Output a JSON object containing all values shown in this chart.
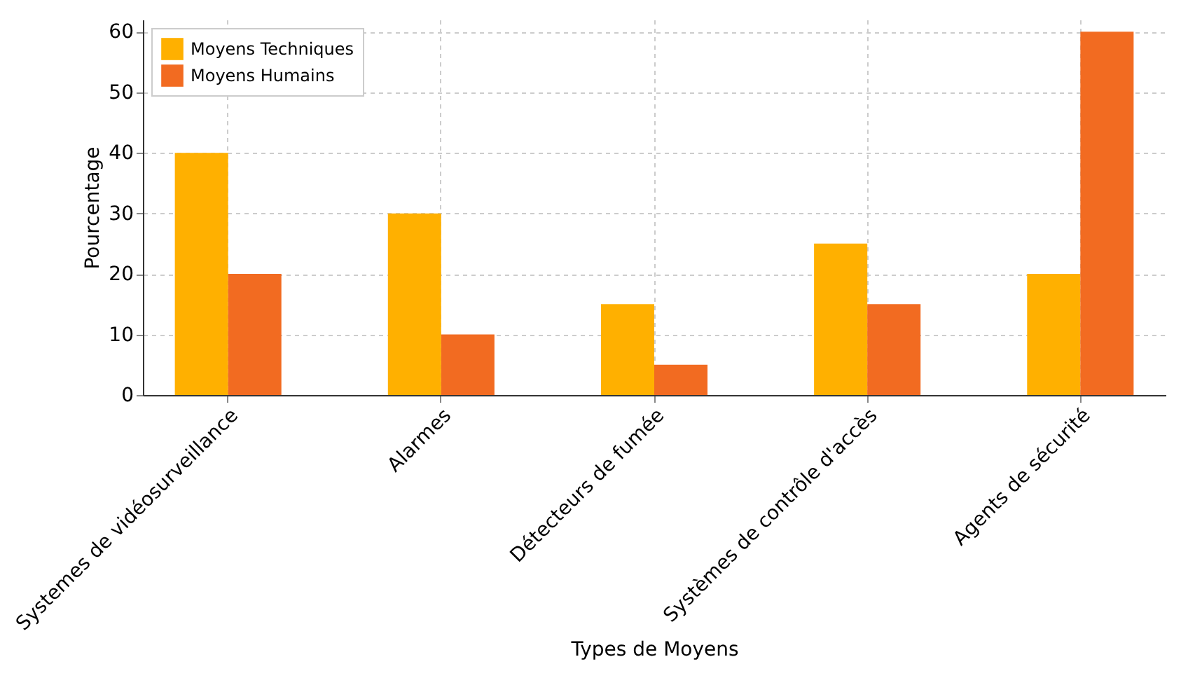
{
  "chart_data": {
    "type": "bar",
    "xlabel": "Types de Moyens",
    "ylabel": "Pourcentage",
    "categories": [
      "Systemes de vidéosurveillance",
      "Alarmes",
      "Détecteurs de fumée",
      "Systèmes de contrôle d'accès",
      "Agents de sécurité"
    ],
    "series": [
      {
        "name": "Moyens Techniques",
        "color": "#ffb000",
        "values": [
          40,
          30,
          15,
          25,
          20
        ]
      },
      {
        "name": "Moyens Humains",
        "color": "#f26b21",
        "values": [
          20,
          10,
          5,
          15,
          60
        ]
      }
    ],
    "ylim": [
      0,
      62
    ],
    "yticks": [
      0,
      10,
      20,
      30,
      40,
      50,
      60
    ],
    "grid": true,
    "legend": "top left"
  }
}
